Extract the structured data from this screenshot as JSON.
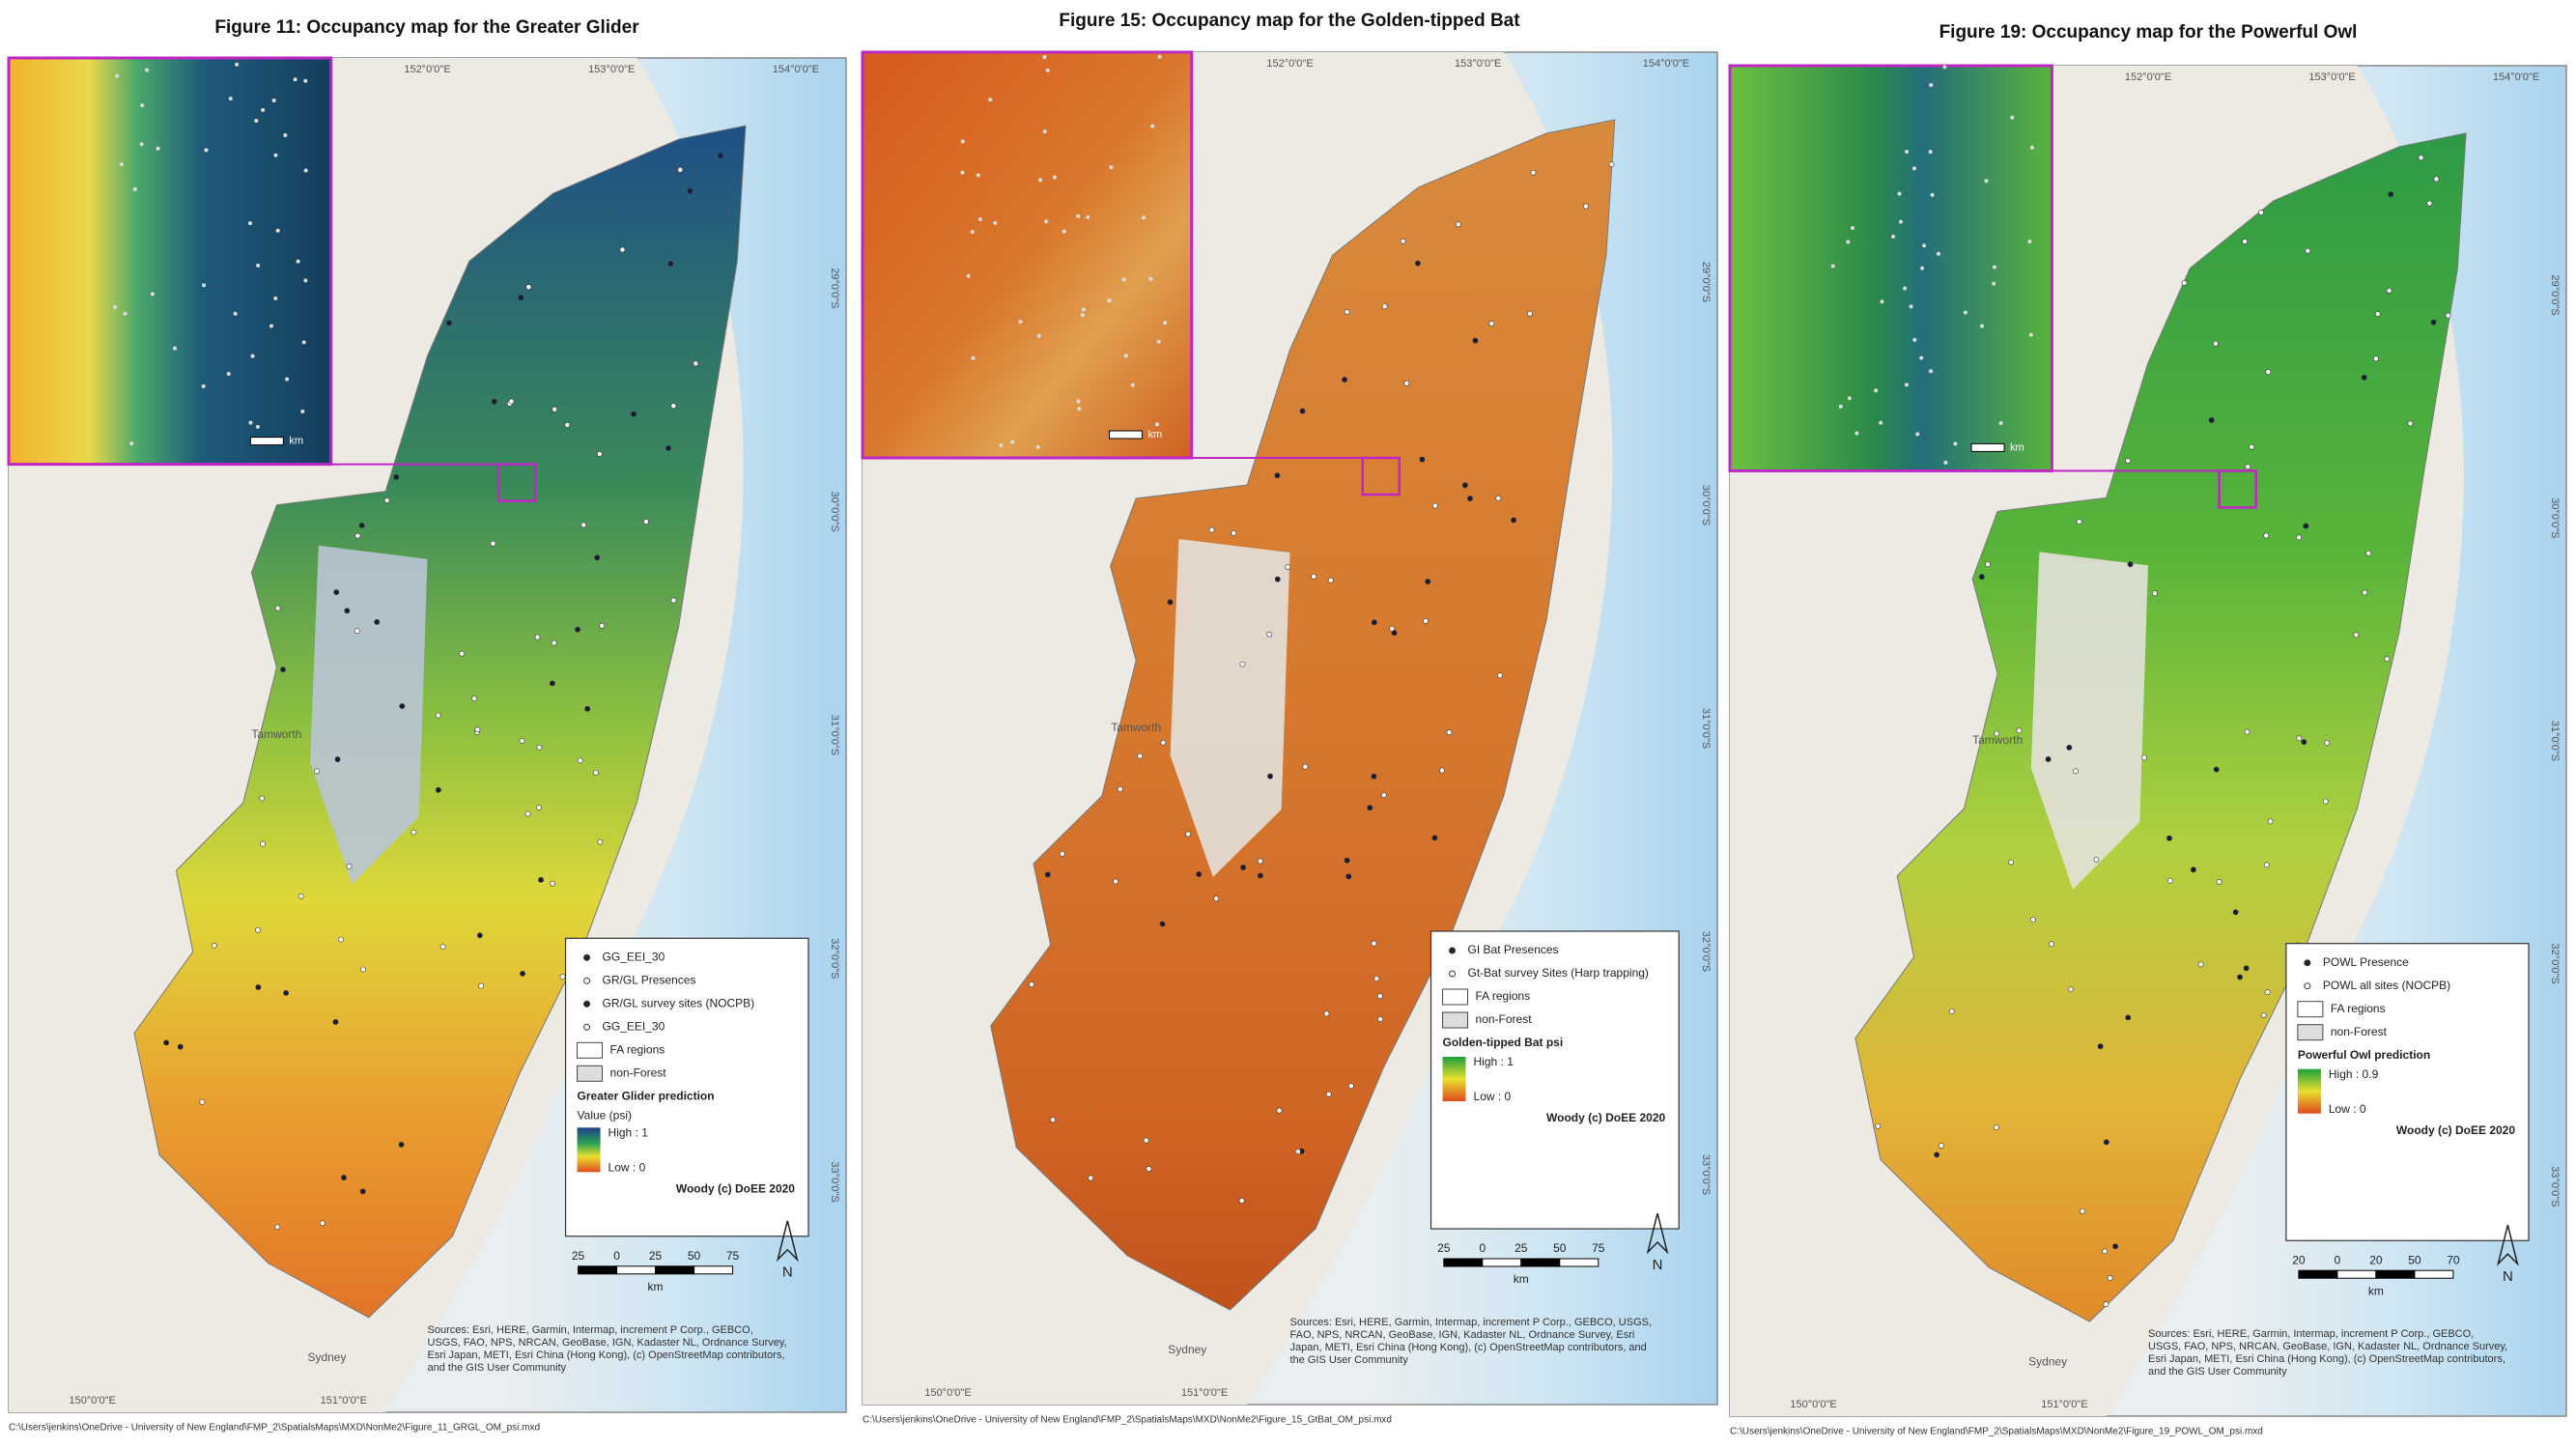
{
  "panels": [
    {
      "title": "Figure 11: Occupancy map for the Greater Glider",
      "legend": {
        "points": [
          "GG_EEI_30",
          "GR/GL Presences",
          "GR/GL survey sites (NOCPB)",
          "GG_EEI_30"
        ],
        "areas": [
          "FA regions",
          "non-Forest"
        ],
        "prediction_title": "Greater Glider prediction",
        "value_label": "Value (psi)",
        "high": "High : 1",
        "low": "Low : 0",
        "credit": "Woody (c) DoEE 2020"
      },
      "scale": {
        "labels": [
          "25",
          "0",
          "25",
          "50",
          "75"
        ],
        "unit": "km"
      },
      "north": "N",
      "inset_scale": "km",
      "coords_top": [
        "152°0'0\"E",
        "153°0'0\"E",
        "154°0'0\"E"
      ],
      "coords_right": [
        "29°0'0\"S",
        "30°0'0\"S",
        "31°0'0\"S",
        "32°0'0\"S",
        "33°0'0\"S"
      ],
      "coords_bottom": [
        "150°0'0\"E",
        "151°0'0\"E"
      ],
      "places": [
        "Tamworth",
        "Sydney"
      ],
      "attribution": "Sources: Esri, HERE, Garmin, Intermap, increment P Corp., GEBCO, USGS, FAO, NPS, NRCAN, GeoBase, IGN, Kadaster NL, Ordnance Survey, Esri Japan, METI, Esri China (Hong Kong), (c) OpenStreetMap contributors, and the GIS User Community",
      "path": "C:\\Users\\jenkins\\OneDrive - University of New England\\FMP_2\\SpatialsMaps\\MXD\\NonMe2\\Figure_11_GRGL_OM_psi.mxd"
    },
    {
      "title": "Figure 15: Occupancy map for the Golden-tipped Bat",
      "legend": {
        "points": [
          "GI Bat Presences",
          "Gt-Bat survey Sites (Harp trapping)"
        ],
        "areas": [
          "FA regions",
          "non-Forest"
        ],
        "prediction_title": "Golden-tipped Bat psi",
        "high": "High : 1",
        "low": "Low : 0",
        "credit": "Woody (c) DoEE 2020"
      },
      "scale": {
        "labels": [
          "25",
          "0",
          "25",
          "50",
          "75"
        ],
        "unit": "km"
      },
      "north": "N",
      "inset_scale": "km",
      "coords_top": [
        "152°0'0\"E",
        "153°0'0\"E",
        "154°0'0\"E"
      ],
      "coords_right": [
        "29°0'0\"S",
        "30°0'0\"S",
        "31°0'0\"S",
        "32°0'0\"S",
        "33°0'0\"S"
      ],
      "coords_bottom": [
        "150°0'0\"E",
        "151°0'0\"E"
      ],
      "places": [
        "Tamworth",
        "Sydney"
      ],
      "attribution": "Sources: Esri, HERE, Garmin, Intermap, increment P Corp., GEBCO, USGS, FAO, NPS, NRCAN, GeoBase, IGN, Kadaster NL, Ordnance Survey, Esri Japan, METI, Esri China (Hong Kong), (c) OpenStreetMap contributors, and the GIS User Community",
      "path": "C:\\Users\\jenkins\\OneDrive - University of New England\\FMP_2\\SpatialsMaps\\MXD\\NonMe2\\Figure_15_GtBat_OM_psi.mxd"
    },
    {
      "title": "Figure 19: Occupancy map for the Powerful Owl",
      "legend": {
        "points": [
          "POWL Presence",
          "POWL all sites (NOCPB)"
        ],
        "areas": [
          "FA regions",
          "non-Forest"
        ],
        "prediction_title": "Powerful Owl prediction",
        "high": "High : 0.9",
        "low": "Low : 0",
        "credit": "Woody (c) DoEE 2020"
      },
      "scale": {
        "labels": [
          "20",
          "0",
          "20",
          "50",
          "70"
        ],
        "unit": "km"
      },
      "north": "N",
      "inset_scale": "km",
      "coords_top": [
        "152°0'0\"E",
        "153°0'0\"E",
        "154°0'0\"E"
      ],
      "coords_right": [
        "29°0'0\"S",
        "30°0'0\"S",
        "31°0'0\"S",
        "32°0'0\"S",
        "33°0'0\"S"
      ],
      "coords_bottom": [
        "150°0'0\"E",
        "151°0'0\"E"
      ],
      "places": [
        "Tamworth",
        "Sydney"
      ],
      "attribution": "Sources: Esri, HERE, Garmin, Intermap, increment P Corp., GEBCO, USGS, FAO, NPS, NRCAN, GeoBase, IGN, Kadaster NL, Ordnance Survey, Esri Japan, METI, Esri China (Hong Kong), (c) OpenStreetMap contributors, and the GIS User Community",
      "path": "C:\\Users\\jenkins\\OneDrive - University of New England\\FMP_2\\SpatialsMaps\\MXD\\NonMe2\\Figure_19_POWL_OM_psi.mxd"
    }
  ]
}
